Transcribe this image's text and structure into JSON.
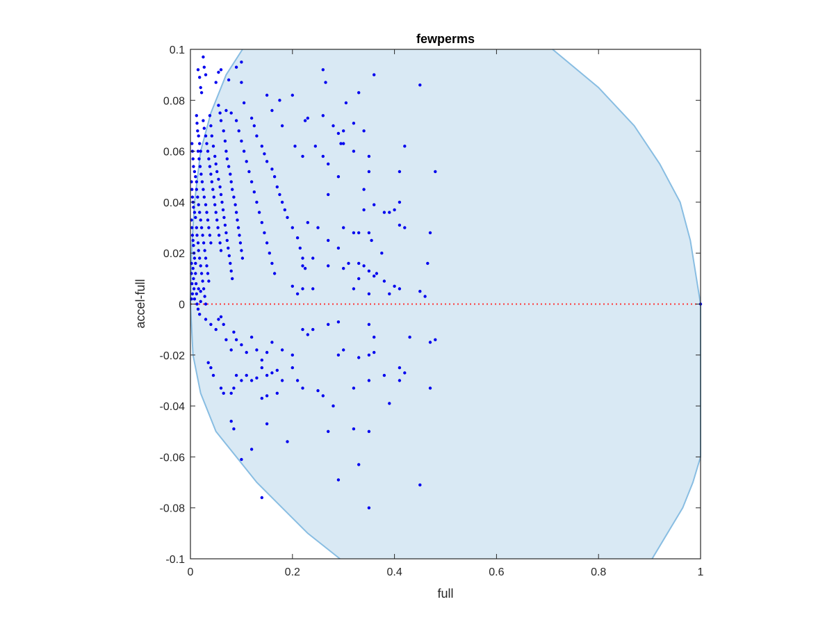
{
  "chart_data": {
    "type": "scatter",
    "title": "fewperms",
    "xlabel": "full",
    "ylabel": "accel-full",
    "xlim": [
      0,
      1
    ],
    "ylim": [
      -0.1,
      0.1
    ],
    "xticks": [
      0,
      0.2,
      0.4,
      0.6,
      0.8,
      1
    ],
    "xtick_labels": [
      "0",
      "0.2",
      "0.4",
      "0.6",
      "0.8",
      "1"
    ],
    "yticks": [
      -0.1,
      -0.08,
      -0.06,
      -0.04,
      -0.02,
      0,
      0.02,
      0.04,
      0.06,
      0.08,
      0.1
    ],
    "ytick_labels": [
      "-0.1",
      "-0.08",
      "-0.06",
      "-0.04",
      "-0.02",
      "0",
      "0.02",
      "0.04",
      "0.06",
      "0.08",
      "0.1"
    ],
    "grid": false,
    "colors": {
      "points": "#0000ee",
      "region_fill": "#d9e9f4",
      "region_edge": "#88bde2",
      "zero_line": "#ff3333",
      "axes": "#262626"
    },
    "reference_line": {
      "y": 0,
      "style": "dotted"
    },
    "region": {
      "left_boundary": [
        [
          0.102,
          0.1
        ],
        [
          0.07,
          0.09
        ],
        [
          0.04,
          0.075
        ],
        [
          0.02,
          0.06
        ],
        [
          0.008,
          0.04
        ],
        [
          0.002,
          0.02
        ],
        [
          0,
          0
        ],
        [
          0.005,
          -0.02
        ],
        [
          0.02,
          -0.035
        ],
        [
          0.05,
          -0.05
        ],
        [
          0.09,
          -0.06
        ],
        [
          0.13,
          -0.07
        ],
        [
          0.18,
          -0.08
        ],
        [
          0.23,
          -0.09
        ],
        [
          0.293,
          -0.1
        ]
      ],
      "right_boundary": [
        [
          0.71,
          0.1
        ],
        [
          0.8,
          0.085
        ],
        [
          0.87,
          0.07
        ],
        [
          0.92,
          0.055
        ],
        [
          0.96,
          0.04
        ],
        [
          0.98,
          0.025
        ],
        [
          1,
          0
        ],
        [
          1,
          -0.06
        ],
        [
          0.985,
          -0.07
        ],
        [
          0.965,
          -0.08
        ],
        [
          0.935,
          -0.09
        ],
        [
          0.905,
          -0.1
        ]
      ]
    },
    "points": [
      [
        0.002,
        0.016
      ],
      [
        0.002,
        0.012
      ],
      [
        0.003,
        0.008
      ],
      [
        0.004,
        0.004
      ],
      [
        0.002,
        0.002
      ],
      [
        0.005,
        0.014
      ],
      [
        0.006,
        0.01
      ],
      [
        0.007,
        0.006
      ],
      [
        0.008,
        0.002
      ],
      [
        0.01,
        0.012
      ],
      [
        0.011,
        0.008
      ],
      [
        0.012,
        0.004
      ],
      [
        0.013,
        0
      ],
      [
        0.015,
        -0.002
      ],
      [
        0.016,
        0.006
      ],
      [
        0.018,
        -0.004
      ],
      [
        0.02,
        0.001
      ],
      [
        0.02,
        0.005
      ],
      [
        0.002,
        0.033
      ],
      [
        0.003,
        0.03
      ],
      [
        0.004,
        0.027
      ],
      [
        0.005,
        0.025
      ],
      [
        0.006,
        0.023
      ],
      [
        0.007,
        0.02
      ],
      [
        0.008,
        0.018
      ],
      [
        0.01,
        0.016
      ],
      [
        0.012,
        0.03
      ],
      [
        0.013,
        0.027
      ],
      [
        0.015,
        0.024
      ],
      [
        0.016,
        0.021
      ],
      [
        0.018,
        0.018
      ],
      [
        0.02,
        0.015
      ],
      [
        0.022,
        0.012
      ],
      [
        0.024,
        0.009
      ],
      [
        0.026,
        0.006
      ],
      [
        0.028,
        0.003
      ],
      [
        0.03,
        0
      ],
      [
        0.002,
        0.048
      ],
      [
        0.003,
        0.045
      ],
      [
        0.004,
        0.042
      ],
      [
        0.005,
        0.04
      ],
      [
        0.006,
        0.038
      ],
      [
        0.008,
        0.036
      ],
      [
        0.01,
        0.034
      ],
      [
        0.012,
        0.045
      ],
      [
        0.014,
        0.042
      ],
      [
        0.016,
        0.039
      ],
      [
        0.018,
        0.036
      ],
      [
        0.02,
        0.033
      ],
      [
        0.022,
        0.03
      ],
      [
        0.024,
        0.027
      ],
      [
        0.026,
        0.024
      ],
      [
        0.028,
        0.021
      ],
      [
        0.03,
        0.018
      ],
      [
        0.032,
        0.015
      ],
      [
        0.034,
        0.012
      ],
      [
        0.036,
        0.009
      ],
      [
        0.003,
        0.063
      ],
      [
        0.004,
        0.06
      ],
      [
        0.005,
        0.057
      ],
      [
        0.006,
        0.054
      ],
      [
        0.008,
        0.052
      ],
      [
        0.01,
        0.05
      ],
      [
        0.012,
        0.048
      ],
      [
        0.015,
        0.06
      ],
      [
        0.017,
        0.057
      ],
      [
        0.019,
        0.054
      ],
      [
        0.021,
        0.051
      ],
      [
        0.023,
        0.048
      ],
      [
        0.025,
        0.045
      ],
      [
        0.027,
        0.042
      ],
      [
        0.03,
        0.039
      ],
      [
        0.032,
        0.036
      ],
      [
        0.034,
        0.033
      ],
      [
        0.036,
        0.03
      ],
      [
        0.038,
        0.027
      ],
      [
        0.04,
        0.024
      ],
      [
        0.012,
        0.074
      ],
      [
        0.013,
        0.071
      ],
      [
        0.014,
        0.068
      ],
      [
        0.016,
        0.066
      ],
      [
        0.018,
        0.063
      ],
      [
        0.02,
        0.06
      ],
      [
        0.025,
        0.072
      ],
      [
        0.027,
        0.069
      ],
      [
        0.03,
        0.066
      ],
      [
        0.032,
        0.063
      ],
      [
        0.034,
        0.06
      ],
      [
        0.036,
        0.057
      ],
      [
        0.038,
        0.054
      ],
      [
        0.04,
        0.051
      ],
      [
        0.042,
        0.048
      ],
      [
        0.044,
        0.045
      ],
      [
        0.046,
        0.042
      ],
      [
        0.048,
        0.039
      ],
      [
        0.05,
        0.036
      ],
      [
        0.052,
        0.033
      ],
      [
        0.054,
        0.03
      ],
      [
        0.056,
        0.027
      ],
      [
        0.058,
        0.024
      ],
      [
        0.06,
        0.021
      ],
      [
        0.02,
        0.085
      ],
      [
        0.022,
        0.083
      ],
      [
        0.015,
        0.092
      ],
      [
        0.018,
        0.089
      ],
      [
        0.025,
        0.097
      ],
      [
        0.027,
        0.093
      ],
      [
        0.03,
        0.09
      ],
      [
        0.05,
        0.087
      ],
      [
        0.055,
        0.091
      ],
      [
        0.06,
        0.092
      ],
      [
        0.075,
        0.088
      ],
      [
        0.09,
        0.093
      ],
      [
        0.1,
        0.087
      ],
      [
        0.1,
        0.095
      ],
      [
        0.105,
        0.079
      ],
      [
        0.038,
        0.074
      ],
      [
        0.04,
        0.07
      ],
      [
        0.042,
        0.066
      ],
      [
        0.045,
        0.062
      ],
      [
        0.048,
        0.058
      ],
      [
        0.05,
        0.055
      ],
      [
        0.052,
        0.052
      ],
      [
        0.055,
        0.049
      ],
      [
        0.058,
        0.046
      ],
      [
        0.06,
        0.043
      ],
      [
        0.062,
        0.04
      ],
      [
        0.064,
        0.037
      ],
      [
        0.066,
        0.034
      ],
      [
        0.068,
        0.031
      ],
      [
        0.07,
        0.028
      ],
      [
        0.072,
        0.025
      ],
      [
        0.074,
        0.022
      ],
      [
        0.076,
        0.019
      ],
      [
        0.078,
        0.016
      ],
      [
        0.08,
        0.013
      ],
      [
        0.082,
        0.01
      ],
      [
        0.055,
        0.078
      ],
      [
        0.058,
        0.075
      ],
      [
        0.06,
        0.072
      ],
      [
        0.065,
        0.068
      ],
      [
        0.068,
        0.064
      ],
      [
        0.07,
        0.06
      ],
      [
        0.072,
        0.057
      ],
      [
        0.075,
        0.054
      ],
      [
        0.078,
        0.051
      ],
      [
        0.08,
        0.048
      ],
      [
        0.082,
        0.045
      ],
      [
        0.085,
        0.042
      ],
      [
        0.088,
        0.039
      ],
      [
        0.09,
        0.036
      ],
      [
        0.092,
        0.033
      ],
      [
        0.094,
        0.03
      ],
      [
        0.096,
        0.027
      ],
      [
        0.098,
        0.024
      ],
      [
        0.1,
        0.021
      ],
      [
        0.102,
        0.018
      ],
      [
        0.07,
        0.076
      ],
      [
        0.08,
        0.075
      ],
      [
        0.09,
        0.072
      ],
      [
        0.095,
        0.068
      ],
      [
        0.1,
        0.064
      ],
      [
        0.105,
        0.06
      ],
      [
        0.11,
        0.056
      ],
      [
        0.115,
        0.052
      ],
      [
        0.12,
        0.048
      ],
      [
        0.125,
        0.044
      ],
      [
        0.13,
        0.04
      ],
      [
        0.135,
        0.036
      ],
      [
        0.14,
        0.032
      ],
      [
        0.145,
        0.028
      ],
      [
        0.15,
        0.024
      ],
      [
        0.155,
        0.02
      ],
      [
        0.16,
        0.016
      ],
      [
        0.165,
        0.012
      ],
      [
        0.12,
        0.073
      ],
      [
        0.125,
        0.07
      ],
      [
        0.13,
        0.066
      ],
      [
        0.14,
        0.062
      ],
      [
        0.145,
        0.059
      ],
      [
        0.15,
        0.056
      ],
      [
        0.16,
        0.053
      ],
      [
        0.165,
        0.05
      ],
      [
        0.17,
        0.046
      ],
      [
        0.175,
        0.043
      ],
      [
        0.18,
        0.04
      ],
      [
        0.185,
        0.037
      ],
      [
        0.19,
        0.034
      ],
      [
        0.2,
        0.03
      ],
      [
        0.21,
        0.026
      ],
      [
        0.215,
        0.022
      ],
      [
        0.22,
        0.018
      ],
      [
        0.225,
        0.014
      ],
      [
        0.15,
        0.082
      ],
      [
        0.16,
        0.076
      ],
      [
        0.175,
        0.08
      ],
      [
        0.18,
        0.07
      ],
      [
        0.2,
        0.082
      ],
      [
        0.205,
        0.062
      ],
      [
        0.22,
        0.058
      ],
      [
        0.225,
        0.072
      ],
      [
        0.23,
        0.073
      ],
      [
        0.245,
        0.062
      ],
      [
        0.26,
        0.074
      ],
      [
        0.26,
        0.092
      ],
      [
        0.265,
        0.087
      ],
      [
        0.28,
        0.07
      ],
      [
        0.29,
        0.067
      ],
      [
        0.295,
        0.063
      ],
      [
        0.3,
        0.068
      ],
      [
        0.305,
        0.079
      ],
      [
        0.32,
        0.071
      ],
      [
        0.33,
        0.083
      ],
      [
        0.34,
        0.068
      ],
      [
        0.36,
        0.09
      ],
      [
        0.41,
        0.052
      ],
      [
        0.42,
        0.062
      ],
      [
        0.45,
        0.086
      ],
      [
        0.48,
        0.052
      ],
      [
        0.26,
        0.058
      ],
      [
        0.27,
        0.055
      ],
      [
        0.29,
        0.05
      ],
      [
        0.3,
        0.063
      ],
      [
        0.32,
        0.06
      ],
      [
        0.35,
        0.052
      ],
      [
        0.35,
        0.058
      ],
      [
        0.34,
        0.045
      ],
      [
        0.34,
        0.037
      ],
      [
        0.27,
        0.043
      ],
      [
        0.36,
        0.039
      ],
      [
        0.38,
        0.036
      ],
      [
        0.39,
        0.036
      ],
      [
        0.4,
        0.037
      ],
      [
        0.41,
        0.04
      ],
      [
        0.41,
        0.031
      ],
      [
        0.42,
        0.03
      ],
      [
        0.23,
        0.032
      ],
      [
        0.25,
        0.03
      ],
      [
        0.27,
        0.025
      ],
      [
        0.3,
        0.03
      ],
      [
        0.32,
        0.028
      ],
      [
        0.33,
        0.028
      ],
      [
        0.35,
        0.028
      ],
      [
        0.355,
        0.025
      ],
      [
        0.375,
        0.02
      ],
      [
        0.47,
        0.028
      ],
      [
        0.22,
        0.015
      ],
      [
        0.24,
        0.018
      ],
      [
        0.27,
        0.015
      ],
      [
        0.29,
        0.022
      ],
      [
        0.3,
        0.014
      ],
      [
        0.31,
        0.016
      ],
      [
        0.33,
        0.016
      ],
      [
        0.34,
        0.015
      ],
      [
        0.35,
        0.013
      ],
      [
        0.36,
        0.011
      ],
      [
        0.365,
        0.012
      ],
      [
        0.38,
        0.009
      ],
      [
        0.39,
        0.004
      ],
      [
        0.4,
        0.007
      ],
      [
        0.41,
        0.006
      ],
      [
        0.45,
        0.005
      ],
      [
        0.46,
        0.003
      ],
      [
        0.465,
        0.016
      ],
      [
        0.35,
        0.004
      ],
      [
        0.32,
        0.006
      ],
      [
        0.33,
        0.01
      ],
      [
        0.24,
        0.006
      ],
      [
        0.22,
        0.006
      ],
      [
        0.21,
        0.004
      ],
      [
        0.2,
        0.007
      ],
      [
        0.03,
        -0.006
      ],
      [
        0.04,
        -0.008
      ],
      [
        0.05,
        -0.01
      ],
      [
        0.055,
        -0.006
      ],
      [
        0.06,
        -0.005
      ],
      [
        0.065,
        -0.008
      ],
      [
        0.07,
        -0.014
      ],
      [
        0.08,
        -0.018
      ],
      [
        0.085,
        -0.011
      ],
      [
        0.09,
        -0.014
      ],
      [
        0.1,
        -0.016
      ],
      [
        0.11,
        -0.019
      ],
      [
        0.12,
        -0.013
      ],
      [
        0.13,
        -0.018
      ],
      [
        0.14,
        -0.022
      ],
      [
        0.15,
        -0.019
      ],
      [
        0.16,
        -0.015
      ],
      [
        0.18,
        -0.018
      ],
      [
        0.2,
        -0.02
      ],
      [
        0.22,
        -0.01
      ],
      [
        0.23,
        -0.012
      ],
      [
        0.24,
        -0.01
      ],
      [
        0.27,
        -0.008
      ],
      [
        0.29,
        -0.007
      ],
      [
        0.3,
        -0.018
      ],
      [
        0.35,
        -0.008
      ],
      [
        0.36,
        -0.013
      ],
      [
        0.035,
        -0.023
      ],
      [
        0.04,
        -0.025
      ],
      [
        0.045,
        -0.028
      ],
      [
        0.06,
        -0.033
      ],
      [
        0.065,
        -0.035
      ],
      [
        0.08,
        -0.035
      ],
      [
        0.09,
        -0.028
      ],
      [
        0.1,
        -0.03
      ],
      [
        0.11,
        -0.028
      ],
      [
        0.12,
        -0.03
      ],
      [
        0.13,
        -0.029
      ],
      [
        0.14,
        -0.025
      ],
      [
        0.15,
        -0.028
      ],
      [
        0.16,
        -0.027
      ],
      [
        0.17,
        -0.026
      ],
      [
        0.18,
        -0.03
      ],
      [
        0.2,
        -0.025
      ],
      [
        0.21,
        -0.03
      ],
      [
        0.22,
        -0.033
      ],
      [
        0.25,
        -0.034
      ],
      [
        0.26,
        -0.036
      ],
      [
        0.28,
        -0.04
      ],
      [
        0.32,
        -0.033
      ],
      [
        0.35,
        -0.03
      ],
      [
        0.38,
        -0.028
      ],
      [
        0.41,
        -0.025
      ],
      [
        0.43,
        -0.013
      ],
      [
        0.42,
        -0.027
      ],
      [
        0.47,
        -0.015
      ],
      [
        0.48,
        -0.014
      ],
      [
        0.35,
        -0.02
      ],
      [
        0.36,
        -0.019
      ],
      [
        0.29,
        -0.02
      ],
      [
        0.33,
        -0.021
      ],
      [
        0.085,
        -0.033
      ],
      [
        0.14,
        -0.037
      ],
      [
        0.15,
        -0.036
      ],
      [
        0.17,
        -0.035
      ],
      [
        0.19,
        -0.054
      ],
      [
        0.08,
        -0.046
      ],
      [
        0.085,
        -0.049
      ],
      [
        0.1,
        -0.061
      ],
      [
        0.12,
        -0.057
      ],
      [
        0.15,
        -0.047
      ],
      [
        0.27,
        -0.05
      ],
      [
        0.32,
        -0.049
      ],
      [
        0.35,
        -0.05
      ],
      [
        0.33,
        -0.063
      ],
      [
        0.29,
        -0.069
      ],
      [
        0.39,
        -0.039
      ],
      [
        0.41,
        -0.03
      ],
      [
        0.47,
        -0.033
      ],
      [
        0.45,
        -0.071
      ],
      [
        0.14,
        -0.076
      ],
      [
        0.35,
        -0.08
      ]
    ],
    "extra_points": [
      [
        1,
        0
      ]
    ]
  }
}
